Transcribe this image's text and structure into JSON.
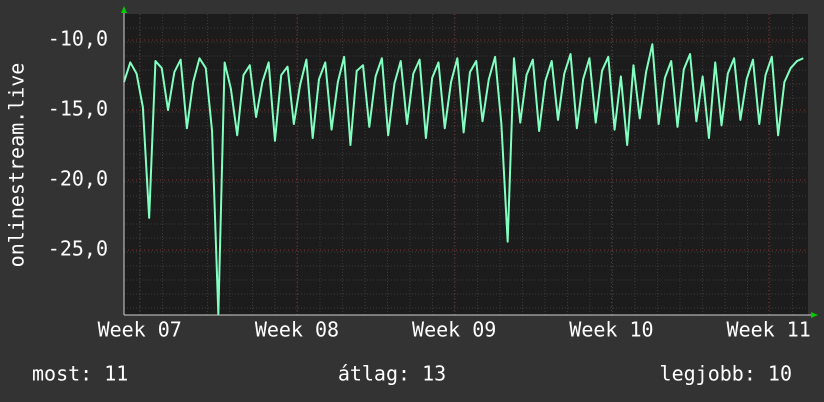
{
  "chart_data": {
    "type": "line",
    "ylabel": "onlinestream.live",
    "annotations": [
      "most: 11",
      "átlag: 13",
      "legjobb: 10"
    ],
    "xlim": [
      6.9,
      11.25
    ],
    "xticks": [
      {
        "value": 7,
        "label": "Week 07"
      },
      {
        "value": 8,
        "label": "Week 08"
      },
      {
        "value": 9,
        "label": "Week 09"
      },
      {
        "value": 10,
        "label": "Week 10"
      },
      {
        "value": 11,
        "label": "Week 11"
      }
    ],
    "ylim": [
      -29.64,
      -8.14
    ],
    "yticks": [
      {
        "value": -10,
        "label": "-10,0"
      },
      {
        "value": -15,
        "label": "-15,0"
      },
      {
        "value": -20,
        "label": "-20,0"
      },
      {
        "value": -25,
        "label": "-25,0"
      }
    ],
    "grid": true,
    "x": [
      6.9,
      6.94,
      6.98,
      7.02,
      7.06,
      7.1,
      7.14,
      7.18,
      7.22,
      7.26,
      7.3,
      7.34,
      7.38,
      7.42,
      7.46,
      7.5,
      7.54,
      7.58,
      7.62,
      7.66,
      7.7,
      7.74,
      7.78,
      7.82,
      7.86,
      7.9,
      7.94,
      7.98,
      8.02,
      8.06,
      8.1,
      8.14,
      8.18,
      8.22,
      8.26,
      8.3,
      8.34,
      8.38,
      8.42,
      8.46,
      8.5,
      8.54,
      8.58,
      8.62,
      8.66,
      8.7,
      8.74,
      8.78,
      8.82,
      8.86,
      8.9,
      8.94,
      8.98,
      9.02,
      9.06,
      9.1,
      9.14,
      9.18,
      9.22,
      9.26,
      9.3,
      9.34,
      9.38,
      9.42,
      9.46,
      9.5,
      9.54,
      9.58,
      9.62,
      9.66,
      9.7,
      9.74,
      9.78,
      9.82,
      9.86,
      9.9,
      9.94,
      9.98,
      10.02,
      10.06,
      10.1,
      10.14,
      10.18,
      10.22,
      10.26,
      10.3,
      10.34,
      10.38,
      10.42,
      10.46,
      10.5,
      10.54,
      10.58,
      10.62,
      10.66,
      10.7,
      10.74,
      10.78,
      10.82,
      10.86,
      10.9,
      10.94,
      10.98,
      11.02,
      11.06,
      11.1,
      11.14,
      11.18,
      11.22
    ],
    "series": [
      {
        "color": "#80ffc0",
        "values": [
          -13.0,
          -11.6,
          -12.4,
          -14.8,
          -22.7,
          -11.5,
          -12.0,
          -15.0,
          -12.3,
          -11.4,
          -16.3,
          -13.0,
          -11.3,
          -12.0,
          -16.5,
          -29.6,
          -11.6,
          -13.5,
          -16.8,
          -12.5,
          -11.8,
          -15.5,
          -13.0,
          -11.6,
          -17.2,
          -12.5,
          -11.9,
          -16.0,
          -13.2,
          -11.4,
          -17.0,
          -12.8,
          -11.6,
          -16.4,
          -13.0,
          -11.2,
          -17.5,
          -12.2,
          -11.8,
          -16.2,
          -12.6,
          -11.3,
          -16.8,
          -13.1,
          -11.5,
          -16.0,
          -12.4,
          -11.4,
          -17.0,
          -12.7,
          -11.6,
          -16.3,
          -13.0,
          -11.3,
          -16.6,
          -12.3,
          -11.5,
          -15.8,
          -12.8,
          -11.2,
          -16.0,
          -24.4,
          -11.3,
          -15.9,
          -12.5,
          -11.4,
          -16.5,
          -12.9,
          -11.5,
          -15.7,
          -12.4,
          -11.0,
          -16.3,
          -12.8,
          -11.3,
          -15.9,
          -12.2,
          -11.2,
          -16.4,
          -12.6,
          -17.5,
          -11.8,
          -15.6,
          -12.3,
          -10.3,
          -16.0,
          -12.7,
          -11.5,
          -16.2,
          -12.1,
          -11.0,
          -15.8,
          -12.6,
          -17.0,
          -11.6,
          -16.1,
          -12.4,
          -11.3,
          -15.7,
          -12.8,
          -11.4,
          -16.0,
          -12.5,
          -11.2,
          -16.8,
          -13.0,
          -12.0,
          -11.5,
          -11.3
        ]
      }
    ]
  }
}
